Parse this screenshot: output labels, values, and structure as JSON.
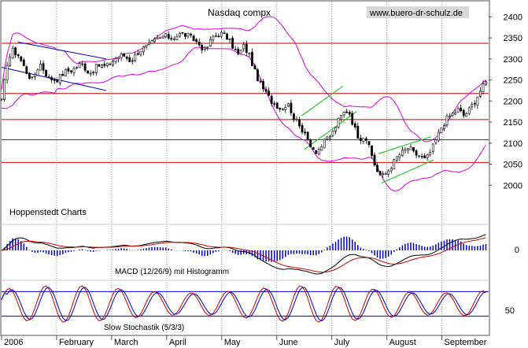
{
  "chart_data": [
    {
      "type": "candlestick",
      "title": "Nasdaq compx",
      "watermark": "www.buero-dr-schulz.de",
      "credit": "Hoppenstedt Charts",
      "y_ticks": [
        2000,
        2050,
        2100,
        2150,
        2200,
        2250,
        2300,
        2350,
        2400
      ],
      "ylim": [
        1950,
        2425
      ],
      "x_labels": [
        "2006",
        "February",
        "March",
        "April",
        "May",
        "June",
        "July",
        "August",
        "September"
      ],
      "x_label_months": [
        0,
        1,
        2,
        3,
        4,
        5,
        6,
        7,
        8
      ],
      "x_range_months": [
        0,
        8.85
      ],
      "horizontal_lines": [
        2337,
        2218,
        2156,
        2108,
        2054
      ],
      "horizontal_line_color": "#cc0000",
      "band_color": "#dd00dd",
      "trend_color_blue": "#0000cc",
      "trend_color_green": "#00cc00",
      "close_path": [
        [
          0.0,
          2200
        ],
        [
          0.1,
          2290
        ],
        [
          0.2,
          2320
        ],
        [
          0.3,
          2310
        ],
        [
          0.45,
          2270
        ],
        [
          0.55,
          2250
        ],
        [
          0.7,
          2290
        ],
        [
          0.85,
          2255
        ],
        [
          1.0,
          2250
        ],
        [
          1.15,
          2270
        ],
        [
          1.3,
          2275
        ],
        [
          1.45,
          2290
        ],
        [
          1.6,
          2265
        ],
        [
          1.75,
          2285
        ],
        [
          1.9,
          2282
        ],
        [
          2.05,
          2300
        ],
        [
          2.2,
          2310
        ],
        [
          2.35,
          2295
        ],
        [
          2.5,
          2320
        ],
        [
          2.65,
          2330
        ],
        [
          2.8,
          2345
        ],
        [
          2.95,
          2355
        ],
        [
          3.1,
          2350
        ],
        [
          3.25,
          2360
        ],
        [
          3.4,
          2355
        ],
        [
          3.55,
          2340
        ],
        [
          3.7,
          2320
        ],
        [
          3.85,
          2355
        ],
        [
          4.0,
          2360
        ],
        [
          4.1,
          2350
        ],
        [
          4.2,
          2330
        ],
        [
          4.3,
          2310
        ],
        [
          4.4,
          2330
        ],
        [
          4.5,
          2310
        ],
        [
          4.6,
          2270
        ],
        [
          4.7,
          2240
        ],
        [
          4.8,
          2220
        ],
        [
          4.9,
          2200
        ],
        [
          5.0,
          2190
        ],
        [
          5.1,
          2180
        ],
        [
          5.2,
          2200
        ],
        [
          5.3,
          2160
        ],
        [
          5.4,
          2150
        ],
        [
          5.5,
          2120
        ],
        [
          5.6,
          2100
        ],
        [
          5.7,
          2080
        ],
        [
          5.8,
          2090
        ],
        [
          5.9,
          2110
        ],
        [
          6.0,
          2120
        ],
        [
          6.1,
          2150
        ],
        [
          6.2,
          2170
        ],
        [
          6.3,
          2180
        ],
        [
          6.4,
          2140
        ],
        [
          6.5,
          2110
        ],
        [
          6.6,
          2120
        ],
        [
          6.7,
          2080
        ],
        [
          6.8,
          2040
        ],
        [
          6.9,
          2020
        ],
        [
          7.0,
          2030
        ],
        [
          7.1,
          2050
        ],
        [
          7.2,
          2070
        ],
        [
          7.3,
          2080
        ],
        [
          7.4,
          2090
        ],
        [
          7.5,
          2075
        ],
        [
          7.6,
          2070
        ],
        [
          7.7,
          2060
        ],
        [
          7.8,
          2080
        ],
        [
          7.9,
          2110
        ],
        [
          8.0,
          2140
        ],
        [
          8.1,
          2160
        ],
        [
          8.2,
          2170
        ],
        [
          8.3,
          2180
        ],
        [
          8.4,
          2165
        ],
        [
          8.5,
          2180
        ],
        [
          8.6,
          2200
        ],
        [
          8.7,
          2225
        ],
        [
          8.8,
          2245
        ]
      ]
    },
    {
      "type": "line",
      "title": "MACD (12/26/9) mit Histogramm",
      "y_ticks": [
        0
      ],
      "series_colors": [
        "#000000",
        "#cc0000"
      ],
      "histogram_color": "#0000cc"
    },
    {
      "type": "line",
      "title": "Slow Stochastik (5/3/3)",
      "y_ticks": [
        50
      ],
      "series_colors": [
        "#cc0000",
        "#0000cc"
      ],
      "band_levels": [
        80,
        20
      ]
    }
  ]
}
